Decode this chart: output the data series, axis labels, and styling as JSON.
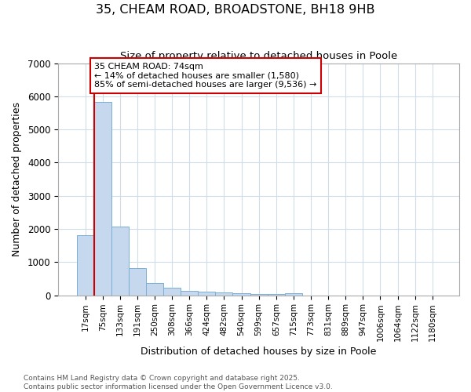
{
  "title": "35, CHEAM ROAD, BROADSTONE, BH18 9HB",
  "subtitle": "Size of property relative to detached houses in Poole",
  "xlabel": "Distribution of detached houses by size in Poole",
  "ylabel": "Number of detached properties",
  "bar_labels": [
    "17sqm",
    "75sqm",
    "133sqm",
    "191sqm",
    "250sqm",
    "308sqm",
    "366sqm",
    "424sqm",
    "482sqm",
    "540sqm",
    "599sqm",
    "657sqm",
    "715sqm",
    "773sqm",
    "831sqm",
    "889sqm",
    "947sqm",
    "1006sqm",
    "1064sqm",
    "1122sqm",
    "1180sqm"
  ],
  "bar_values": [
    1800,
    5820,
    2080,
    820,
    360,
    230,
    130,
    100,
    75,
    55,
    40,
    30,
    55,
    0,
    0,
    0,
    0,
    0,
    0,
    0,
    0
  ],
  "bar_color": "#c5d8ed",
  "bar_edge_color": "#7aafd4",
  "vline_x": 0.5,
  "vline_color": "#cc0000",
  "annotation_title": "35 CHEAM ROAD: 74sqm",
  "annotation_line2": "← 14% of detached houses are smaller (1,580)",
  "annotation_line3": "85% of semi-detached houses are larger (9,536) →",
  "annotation_box_facecolor": "#ffffff",
  "annotation_box_edgecolor": "#cc0000",
  "ylim": [
    0,
    7000
  ],
  "yticks": [
    0,
    1000,
    2000,
    3000,
    4000,
    5000,
    6000,
    7000
  ],
  "footer_line1": "Contains HM Land Registry data © Crown copyright and database right 2025.",
  "footer_line2": "Contains public sector information licensed under the Open Government Licence v3.0.",
  "bg_color": "#ffffff",
  "plot_bg_color": "#ffffff",
  "grid_color": "#d0dce8"
}
